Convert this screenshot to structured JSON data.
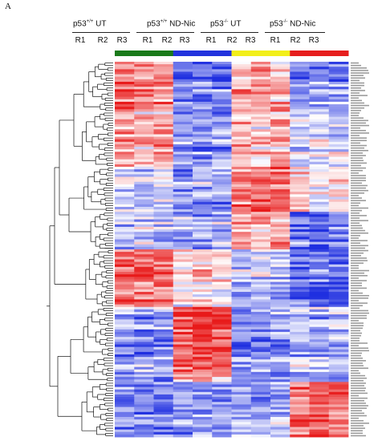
{
  "panel_label": "A",
  "chart_data": {
    "type": "heatmap",
    "title": "",
    "xlabel": "",
    "ylabel": "",
    "groups": [
      {
        "base": "p53",
        "sup": "+/+",
        "label": "UT",
        "color": "#1a7a1a",
        "replicates": [
          "R1",
          "R2",
          "R3"
        ]
      },
      {
        "base": "p53",
        "sup": "+/+",
        "label": "ND-Nic",
        "color": "#2233dd",
        "replicates": [
          "R1",
          "R2",
          "R3"
        ]
      },
      {
        "base": "p53",
        "sup": "-/-",
        "label": "UT",
        "color": "#f2ef1a",
        "replicates": [
          "R1",
          "R2",
          "R3"
        ]
      },
      {
        "base": "p53",
        "sup": "-/-",
        "label": "ND-Nic",
        "color": "#e61e1e",
        "replicates": [
          "R1",
          "R2",
          "R3"
        ]
      }
    ],
    "color_scale": {
      "low": "#1f2fe0",
      "mid": "#ffffff",
      "high": "#e81a1a",
      "range": [
        -1,
        1
      ]
    },
    "row_count": 150,
    "row_dendrogram": true,
    "row_labels_legible": false,
    "block_pattern": [
      {
        "rows": [
          0,
          20
        ],
        "values": [
          0.7,
          0.7,
          0.6,
          -0.6,
          -0.6,
          -0.6,
          0.4,
          0.5,
          0.4,
          -0.5,
          -0.5,
          -0.5
        ]
      },
      {
        "rows": [
          20,
          42
        ],
        "values": [
          0.4,
          0.3,
          0.4,
          -0.5,
          -0.6,
          -0.5,
          0.3,
          0.2,
          0.3,
          -0.2,
          -0.1,
          -0.2
        ]
      },
      {
        "rows": [
          42,
          60
        ],
        "values": [
          -0.2,
          -0.3,
          -0.1,
          -0.5,
          -0.4,
          -0.5,
          0.6,
          0.7,
          0.6,
          0.1,
          0.0,
          0.1
        ]
      },
      {
        "rows": [
          60,
          75
        ],
        "values": [
          -0.3,
          -0.2,
          -0.3,
          -0.4,
          -0.4,
          -0.3,
          0.4,
          0.3,
          0.4,
          -0.6,
          -0.7,
          -0.6
        ]
      },
      {
        "rows": [
          75,
          98
        ],
        "values": [
          0.6,
          0.7,
          0.7,
          0.1,
          0.2,
          0.1,
          -0.3,
          -0.2,
          -0.3,
          -0.7,
          -0.6,
          -0.7
        ]
      },
      {
        "rows": [
          98,
          118
        ],
        "values": [
          -0.5,
          -0.6,
          -0.5,
          0.8,
          0.9,
          0.8,
          -0.6,
          -0.6,
          -0.5,
          -0.3,
          -0.4,
          -0.3
        ]
      },
      {
        "rows": [
          118,
          128
        ],
        "values": [
          -0.4,
          -0.3,
          -0.4,
          0.6,
          0.7,
          0.5,
          -0.4,
          -0.5,
          -0.4,
          -0.2,
          -0.2,
          -0.3
        ]
      },
      {
        "rows": [
          128,
          150
        ],
        "values": [
          -0.5,
          -0.6,
          -0.5,
          -0.5,
          -0.4,
          -0.5,
          -0.3,
          -0.4,
          -0.3,
          0.7,
          0.8,
          0.7
        ]
      }
    ]
  }
}
